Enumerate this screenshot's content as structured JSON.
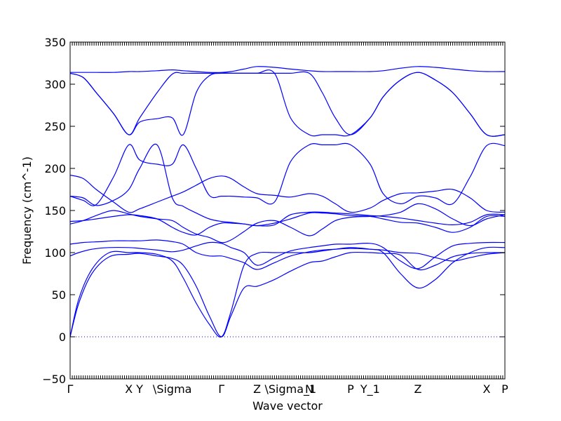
{
  "chart_data": {
    "type": "line",
    "xlabel": "Wave vector",
    "ylabel": "Frequency (cm^-1)",
    "ylim": [
      -50,
      350
    ],
    "yticks": [
      -50,
      0,
      50,
      100,
      150,
      200,
      250,
      300,
      350
    ],
    "ytick_labels": [
      "−50",
      "0",
      "50",
      "100",
      "150",
      "200",
      "250",
      "300",
      "350"
    ],
    "high_symmetry_points": [
      {
        "label": "Γ",
        "x": 0.0
      },
      {
        "label": "X",
        "x": 0.135
      },
      {
        "label": "Y",
        "x": 0.16
      },
      {
        "label": "\\Sigma",
        "x": 0.235
      },
      {
        "label": "Γ",
        "x": 0.348
      },
      {
        "label": "Z",
        "x": 0.43
      },
      {
        "label": "\\Sigma_1",
        "x": 0.507
      },
      {
        "label": "N",
        "x": 0.55
      },
      {
        "label": "P",
        "x": 0.645
      },
      {
        "label": "Y_1",
        "x": 0.69
      },
      {
        "label": "Z",
        "x": 0.8
      },
      {
        "label": "X",
        "x": 0.958
      },
      {
        "label": "P",
        "x": 1.0
      }
    ],
    "series": [
      {
        "x": [
          0,
          0.02,
          0.05,
          0.09,
          0.135,
          0.16,
          0.2,
          0.235,
          0.26,
          0.29,
          0.32,
          0.348,
          0.37,
          0.4,
          0.43,
          0.47,
          0.507,
          0.55,
          0.58,
          0.61,
          0.645,
          0.69,
          0.72,
          0.76,
          0.8,
          0.84,
          0.88,
          0.92,
          0.958,
          1.0
        ],
        "y": [
          0,
          40,
          75,
          95,
          98,
          99,
          96,
          93,
          85,
          60,
          25,
          0,
          25,
          58,
          60,
          68,
          78,
          88,
          90,
          95,
          100,
          100,
          99,
          97,
          80,
          85,
          95,
          99,
          100,
          100
        ]
      },
      {
        "x": [
          0,
          0.02,
          0.05,
          0.09,
          0.135,
          0.16,
          0.2,
          0.235,
          0.26,
          0.29,
          0.32,
          0.348,
          0.37,
          0.4,
          0.43,
          0.47,
          0.507,
          0.55,
          0.58,
          0.61,
          0.645,
          0.69,
          0.72,
          0.76,
          0.8,
          0.84,
          0.88,
          0.92,
          0.958,
          1.0
        ],
        "y": [
          0,
          45,
          80,
          100,
          100,
          100,
          98,
          90,
          70,
          40,
          15,
          0,
          30,
          85,
          99,
          100,
          100,
          100,
          102,
          104,
          106,
          104,
          100,
          75,
          58,
          68,
          88,
          100,
          106,
          106
        ]
      },
      {
        "x": [
          0,
          0.02,
          0.05,
          0.09,
          0.135,
          0.16,
          0.2,
          0.235,
          0.26,
          0.29,
          0.32,
          0.348,
          0.37,
          0.4,
          0.43,
          0.47,
          0.507,
          0.55,
          0.58,
          0.61,
          0.645,
          0.69,
          0.72,
          0.76,
          0.8,
          0.84,
          0.88,
          0.92,
          0.958,
          1.0
        ],
        "y": [
          96,
          100,
          104,
          106,
          106,
          105,
          103,
          101,
          103,
          108,
          112,
          111,
          106,
          100,
          85,
          94,
          102,
          106,
          108,
          110,
          110,
          111,
          106,
          90,
          81,
          95,
          108,
          111,
          112,
          112
        ]
      },
      {
        "x": [
          0,
          0.03,
          0.07,
          0.1,
          0.135,
          0.16,
          0.2,
          0.235,
          0.26,
          0.29,
          0.32,
          0.348,
          0.37,
          0.4,
          0.43,
          0.47,
          0.507,
          0.55,
          0.58,
          0.61,
          0.645,
          0.69,
          0.72,
          0.76,
          0.8,
          0.84,
          0.88,
          0.92,
          0.958,
          1.0
        ],
        "y": [
          110,
          112,
          113,
          114,
          114,
          114,
          115,
          113,
          110,
          100,
          96,
          96,
          93,
          88,
          80,
          88,
          96,
          101,
          103,
          104,
          105,
          104,
          103,
          100,
          99,
          94,
          90,
          94,
          98,
          100
        ]
      },
      {
        "x": [
          0,
          0.03,
          0.07,
          0.1,
          0.135,
          0.16,
          0.2,
          0.235,
          0.26,
          0.29,
          0.32,
          0.348,
          0.37,
          0.4,
          0.43,
          0.47,
          0.507,
          0.55,
          0.58,
          0.61,
          0.645,
          0.69,
          0.72,
          0.76,
          0.8,
          0.84,
          0.88,
          0.92,
          0.958,
          1.0
        ],
        "y": [
          134,
          138,
          146,
          150,
          146,
          143,
          140,
          138,
          130,
          122,
          118,
          112,
          115,
          125,
          135,
          138,
          130,
          120,
          128,
          138,
          142,
          143,
          144,
          148,
          158,
          152,
          140,
          132,
          140,
          145
        ]
      },
      {
        "x": [
          0,
          0.03,
          0.06,
          0.1,
          0.135,
          0.16,
          0.2,
          0.235,
          0.26,
          0.29,
          0.32,
          0.348,
          0.37,
          0.4,
          0.43,
          0.47,
          0.507,
          0.55,
          0.58,
          0.61,
          0.645,
          0.69,
          0.72,
          0.76,
          0.8,
          0.84,
          0.88,
          0.92,
          0.958,
          1.0
        ],
        "y": [
          137,
          138,
          140,
          143,
          145,
          144,
          140,
          130,
          124,
          121,
          130,
          135,
          135,
          134,
          132,
          135,
          140,
          147,
          147,
          146,
          144,
          143,
          140,
          136,
          135,
          130,
          124,
          130,
          143,
          143
        ]
      },
      {
        "x": [
          0,
          0.03,
          0.06,
          0.1,
          0.135,
          0.16,
          0.2,
          0.235,
          0.26,
          0.29,
          0.32,
          0.348,
          0.37,
          0.4,
          0.43,
          0.47,
          0.507,
          0.55,
          0.58,
          0.61,
          0.645,
          0.69,
          0.72,
          0.76,
          0.8,
          0.84,
          0.88,
          0.92,
          0.958,
          1.0
        ],
        "y": [
          167,
          165,
          156,
          162,
          175,
          200,
          228,
          165,
          155,
          147,
          140,
          137,
          136,
          134,
          132,
          133,
          145,
          148,
          148,
          147,
          146,
          144,
          143,
          141,
          138,
          135,
          133,
          136,
          145,
          145
        ]
      },
      {
        "x": [
          0,
          0.03,
          0.06,
          0.1,
          0.135,
          0.16,
          0.2,
          0.235,
          0.26,
          0.29,
          0.32,
          0.348,
          0.37,
          0.4,
          0.43,
          0.47,
          0.507,
          0.55,
          0.58,
          0.61,
          0.645,
          0.69,
          0.72,
          0.76,
          0.8,
          0.84,
          0.88,
          0.92,
          0.958,
          1.0
        ],
        "y": [
          192,
          188,
          175,
          160,
          148,
          152,
          160,
          167,
          172,
          180,
          188,
          191,
          188,
          178,
          170,
          168,
          166,
          170,
          167,
          158,
          148,
          153,
          162,
          170,
          171,
          173,
          175,
          165,
          150,
          148
        ]
      },
      {
        "x": [
          0,
          0.03,
          0.06,
          0.1,
          0.135,
          0.16,
          0.2,
          0.235,
          0.26,
          0.29,
          0.32,
          0.348,
          0.37,
          0.4,
          0.43,
          0.47,
          0.507,
          0.55,
          0.58,
          0.61,
          0.645,
          0.69,
          0.72,
          0.76,
          0.8,
          0.84,
          0.88,
          0.92,
          0.958,
          1.0
        ],
        "y": [
          167,
          162,
          157,
          190,
          228,
          210,
          205,
          205,
          228,
          200,
          168,
          167,
          167,
          166,
          165,
          160,
          208,
          228,
          228,
          228,
          228,
          205,
          170,
          158,
          167,
          165,
          158,
          190,
          227,
          227
        ]
      },
      {
        "x": [
          0,
          0.03,
          0.06,
          0.1,
          0.135,
          0.16,
          0.2,
          0.235,
          0.26,
          0.29,
          0.32,
          0.348,
          0.37,
          0.4,
          0.43,
          0.47,
          0.507,
          0.55,
          0.58,
          0.61,
          0.645,
          0.69,
          0.72,
          0.76,
          0.8,
          0.84,
          0.88,
          0.92,
          0.958,
          1.0
        ],
        "y": [
          313,
          308,
          290,
          265,
          240,
          255,
          259,
          260,
          240,
          290,
          310,
          313,
          313,
          313,
          313,
          313,
          260,
          240,
          240,
          240,
          240,
          260,
          285,
          305,
          314,
          305,
          290,
          265,
          240,
          240
        ]
      },
      {
        "x": [
          0,
          0.03,
          0.06,
          0.1,
          0.135,
          0.16,
          0.2,
          0.235,
          0.26,
          0.29,
          0.32,
          0.348,
          0.37,
          0.4,
          0.43,
          0.47,
          0.507,
          0.55,
          0.58,
          0.61,
          0.645,
          0.69,
          0.72,
          0.76,
          0.8,
          0.84,
          0.88,
          0.92,
          0.958,
          1.0
        ],
        "y": [
          313,
          308,
          290,
          265,
          240,
          260,
          290,
          312,
          313,
          313,
          313,
          313,
          313,
          313,
          313,
          313,
          313,
          313,
          290,
          260,
          240,
          260,
          285,
          305,
          314,
          305,
          290,
          265,
          240,
          240
        ]
      },
      {
        "x": [
          0,
          0.03,
          0.06,
          0.1,
          0.135,
          0.16,
          0.2,
          0.235,
          0.26,
          0.29,
          0.32,
          0.348,
          0.37,
          0.4,
          0.43,
          0.47,
          0.507,
          0.55,
          0.58,
          0.61,
          0.645,
          0.69,
          0.72,
          0.76,
          0.8,
          0.84,
          0.88,
          0.92,
          0.958,
          1.0
        ],
        "y": [
          314,
          314,
          314,
          314,
          315,
          315,
          316,
          317,
          316,
          315,
          314,
          314,
          315,
          318,
          321,
          320,
          318,
          316,
          315,
          315,
          315,
          315,
          316,
          319,
          321,
          320,
          318,
          316,
          315,
          315
        ]
      }
    ]
  }
}
